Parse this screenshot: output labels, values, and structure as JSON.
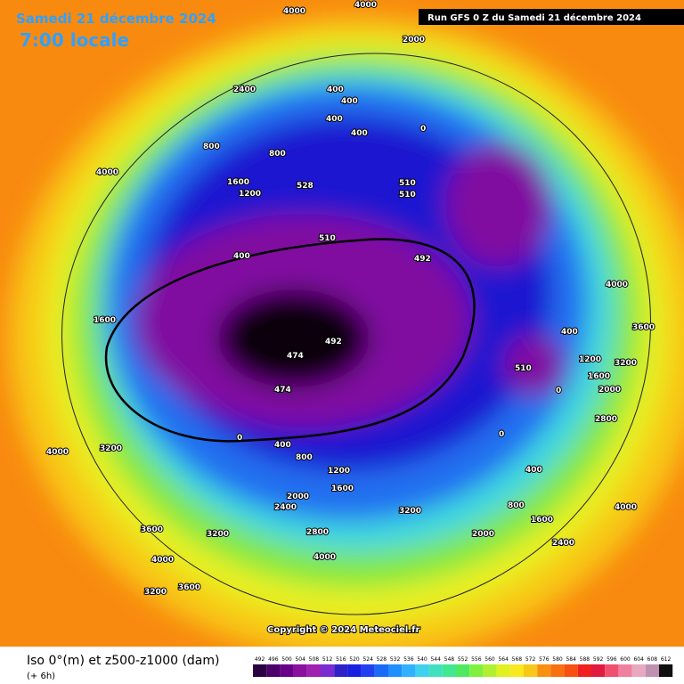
{
  "header": {
    "date": "Samedi 21 décembre 2024",
    "time": "7:00 locale",
    "run": "Run GFS 0 Z du Samedi 21 décembre 2024"
  },
  "footer": {
    "title": "Iso 0°(m) et z500-z1000 (dam)",
    "offset": "(+ 6h)",
    "copyright": "Copyright © 2024 Meteociel.fr"
  },
  "legend": {
    "labels": [
      492,
      496,
      500,
      504,
      508,
      512,
      516,
      520,
      524,
      528,
      532,
      536,
      540,
      544,
      548,
      552,
      556,
      560,
      564,
      568,
      572,
      576,
      580,
      584,
      588,
      592,
      596,
      600,
      604,
      608,
      612
    ],
    "colors": [
      "#2a0040",
      "#4a0068",
      "#6a0088",
      "#8a10a0",
      "#a020b0",
      "#7a2ad0",
      "#3020c8",
      "#1a20e0",
      "#2040f0",
      "#1a6af8",
      "#2090ff",
      "#30b0ff",
      "#40d0f0",
      "#40e0c0",
      "#40e890",
      "#50e860",
      "#80f040",
      "#b0f030",
      "#e0f020",
      "#f8e820",
      "#f8c818",
      "#f89010",
      "#f87010",
      "#f85010",
      "#f02020",
      "#e01a40",
      "#f05070",
      "#f080a0",
      "#e8a8c0",
      "#c090b0",
      "#101010"
    ]
  },
  "map": {
    "labels": [
      "4000",
      "4000",
      "2000",
      "2400",
      "400",
      "400",
      "400",
      "400",
      "0",
      "800",
      "800",
      "4000",
      "1600",
      "1200",
      "528",
      "510",
      "510",
      "510",
      "492",
      "474",
      "474",
      "492",
      "0",
      "400",
      "800",
      "1200",
      "1600",
      "2000",
      "2400",
      "2800",
      "3200",
      "3600",
      "4000",
      "3200",
      "3200",
      "3600",
      "4000",
      "3200",
      "1600",
      "400",
      "0",
      "400",
      "800",
      "1600",
      "2000",
      "2400",
      "2800",
      "3200",
      "3600",
      "4000",
      "510",
      "0",
      "400",
      "1200",
      "1600",
      "2000",
      "4000",
      "4000"
    ]
  }
}
